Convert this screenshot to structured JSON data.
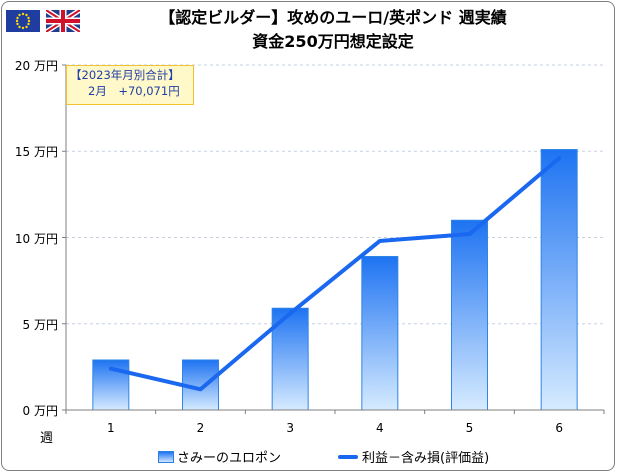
{
  "flags": {
    "left_icon": "eu-flag-icon",
    "right_icon": "uk-flag-icon"
  },
  "annotation": {
    "line1": "【2023年月別合計】",
    "line2": "2月　+70,071円"
  },
  "chart_data": {
    "type": "bar",
    "title": "【認定ビルダー】攻めのユーロ/英ポンド 週実績",
    "subtitle": "資金250万円想定設定",
    "xlabel": "週",
    "categories": [
      "1",
      "2",
      "3",
      "4",
      "5",
      "6"
    ],
    "series": [
      {
        "name": "さみーのユロポン",
        "type": "bar",
        "values": [
          2.9,
          2.9,
          5.9,
          8.9,
          11.0,
          15.1
        ]
      },
      {
        "name": "利益－含み損(評価益)",
        "type": "line",
        "values": [
          2.4,
          1.2,
          5.6,
          9.8,
          10.2,
          14.6
        ]
      }
    ],
    "yticks": [
      "0 万円",
      "5 万円",
      "10 万円",
      "15 万円",
      "20 万円"
    ],
    "ylim": [
      0,
      20
    ],
    "grid": true,
    "legend": "bottom",
    "colors": {
      "bar_top": "#1e73f2",
      "bar_bottom": "#d6ebff",
      "bar_border": "#2f86e6",
      "line": "#1a68f0",
      "grid": "#c6d0e0"
    }
  }
}
